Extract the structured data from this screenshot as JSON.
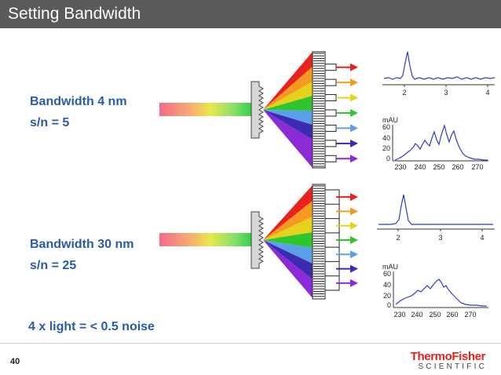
{
  "slide": {
    "title": "Setting Bandwidth",
    "page_number": "40",
    "logo": {
      "top": "ThermoFisher",
      "bottom": "SCIENTIFIC"
    }
  },
  "panels": {
    "top": {
      "bandwidth": "Bandwidth 4 nm",
      "sn": "s/n = 5"
    },
    "bottom": {
      "bandwidth": "Bandwidth 30 nm",
      "sn": "s/n = 25"
    }
  },
  "summary": "4 x light = < 0.5 noise",
  "colors": {
    "title_bg": "#5a5a5a",
    "label_blue": "#2a5aa8",
    "trace_blue": "#2e3bd0",
    "arrow_colors": [
      "#e8231f",
      "#f59a1e",
      "#e5d21a",
      "#2ec52e",
      "#5aa0e8",
      "#3b2bb0",
      "#8a2bd6"
    ]
  },
  "charts": {
    "top_chromatogram": {
      "x_ticks": [
        "2",
        "3",
        "4"
      ]
    },
    "top_spectrum": {
      "y_unit": "mAU",
      "y_ticks": [
        "60",
        "40",
        "20",
        "0"
      ],
      "x_ticks": [
        "230",
        "240",
        "250",
        "260",
        "270"
      ]
    },
    "bottom_chromatogram": {
      "x_ticks": [
        "2",
        "3",
        "4"
      ]
    },
    "bottom_spectrum": {
      "y_unit": "mAU",
      "y_ticks": [
        "60",
        "40",
        "20",
        "0"
      ],
      "x_ticks": [
        "230",
        "240",
        "250",
        "260",
        "270"
      ]
    }
  }
}
